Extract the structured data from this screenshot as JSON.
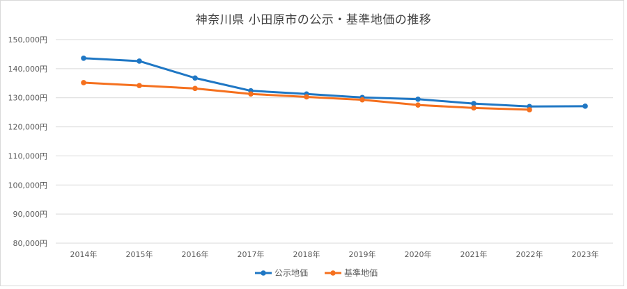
{
  "chart_data": {
    "type": "line",
    "title": "神奈川県 小田原市の公示・基準地価の推移",
    "categories": [
      "2014年",
      "2015年",
      "2016年",
      "2017年",
      "2018年",
      "2019年",
      "2020年",
      "2021年",
      "2022年",
      "2023年"
    ],
    "ylim": [
      80000,
      150000
    ],
    "yticks": [
      "80,000円",
      "90,000円",
      "100,000円",
      "110,000円",
      "120,000円",
      "130,000円",
      "140,000円",
      "150,000円"
    ],
    "grid": true,
    "legend": "bottom",
    "series": [
      {
        "name": "公示地価",
        "color": "#1f77c4",
        "values": [
          143600,
          142600,
          136800,
          132400,
          131300,
          130100,
          129500,
          128000,
          127000,
          127100
        ]
      },
      {
        "name": "基準地価",
        "color": "#f5701e",
        "values": [
          135200,
          134200,
          133200,
          131300,
          130300,
          129300,
          127500,
          126500,
          125900,
          null
        ]
      }
    ]
  }
}
